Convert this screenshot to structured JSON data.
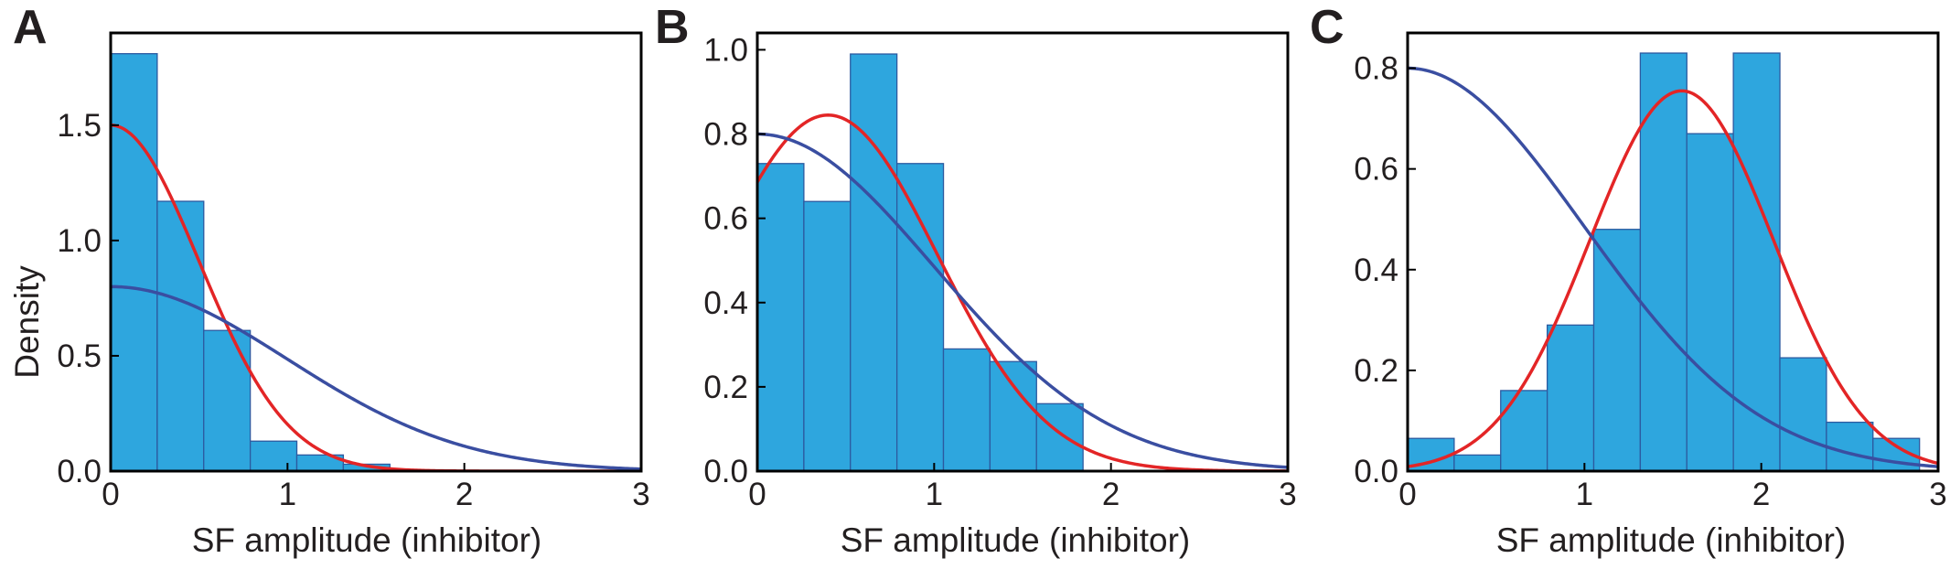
{
  "chart_data": [
    {
      "panel": "A",
      "type": "bar",
      "xlabel": "SF amplitude (inhibitor)",
      "ylabel": "Density",
      "xlim": [
        0,
        3
      ],
      "ylim": [
        0,
        1.9
      ],
      "xticks": [
        0,
        1,
        2,
        3
      ],
      "yticks": [
        0.0,
        0.5,
        1.0,
        1.5
      ],
      "ytick_labels": [
        "0.0",
        "0.5",
        "1.0",
        "1.5"
      ],
      "bin_width": 0.2632,
      "bins": [
        {
          "x0": 0.0,
          "value": 1.81
        },
        {
          "x0": 0.2632,
          "value": 1.17
        },
        {
          "x0": 0.5263,
          "value": 0.61
        },
        {
          "x0": 0.7895,
          "value": 0.13
        },
        {
          "x0": 1.0526,
          "value": 0.07
        },
        {
          "x0": 1.3158,
          "value": 0.03
        }
      ],
      "curves": [
        {
          "color": "#e32526",
          "kind": "half-normal",
          "params": {
            "a": 1.5,
            "mu": 0.0,
            "sigma": 0.5
          }
        },
        {
          "color": "#3a4ea1",
          "kind": "gaussian",
          "params": {
            "a": 0.8,
            "mu": 0.0,
            "sigma": 1.0
          }
        }
      ],
      "grid": false
    },
    {
      "panel": "B",
      "type": "bar",
      "xlabel": "SF amplitude (inhibitor)",
      "ylabel": "",
      "xlim": [
        0,
        3
      ],
      "ylim": [
        0,
        1.04
      ],
      "xticks": [
        0,
        1,
        2,
        3
      ],
      "yticks": [
        0.0,
        0.2,
        0.4,
        0.6,
        0.8,
        1.0
      ],
      "ytick_labels": [
        "0.0",
        "0.2",
        "0.4",
        "0.6",
        "0.8",
        "1.0"
      ],
      "bin_width": 0.2632,
      "bins": [
        {
          "x0": 0.0,
          "value": 0.73
        },
        {
          "x0": 0.2632,
          "value": 0.64
        },
        {
          "x0": 0.5263,
          "value": 0.99
        },
        {
          "x0": 0.7895,
          "value": 0.73
        },
        {
          "x0": 1.0526,
          "value": 0.29
        },
        {
          "x0": 1.3158,
          "value": 0.26
        },
        {
          "x0": 1.5789,
          "value": 0.16
        }
      ],
      "curves": [
        {
          "color": "#e32526",
          "kind": "gaussian",
          "params": {
            "a": 0.845,
            "mu": 0.4,
            "sigma": 0.62
          }
        },
        {
          "color": "#3a4ea1",
          "kind": "gaussian",
          "params": {
            "a": 0.8,
            "mu": 0.0,
            "sigma": 1.0
          }
        }
      ],
      "grid": false
    },
    {
      "panel": "C",
      "type": "bar",
      "xlabel": "SF amplitude (inhibitor)",
      "ylabel": "",
      "xlim": [
        0,
        3
      ],
      "ylim": [
        0,
        0.87
      ],
      "xticks": [
        0,
        1,
        2,
        3
      ],
      "yticks": [
        0.0,
        0.2,
        0.4,
        0.6,
        0.8
      ],
      "ytick_labels": [
        "0.0",
        "0.2",
        "0.4",
        "0.6",
        "0.8"
      ],
      "bin_width": 0.2632,
      "bins": [
        {
          "x0": 0.0,
          "value": 0.065
        },
        {
          "x0": 0.2632,
          "value": 0.032
        },
        {
          "x0": 0.5263,
          "value": 0.16
        },
        {
          "x0": 0.7895,
          "value": 0.29
        },
        {
          "x0": 1.0526,
          "value": 0.48
        },
        {
          "x0": 1.3158,
          "value": 0.83
        },
        {
          "x0": 1.5789,
          "value": 0.67
        },
        {
          "x0": 1.8421,
          "value": 0.83
        },
        {
          "x0": 2.1053,
          "value": 0.225
        },
        {
          "x0": 2.3684,
          "value": 0.097
        },
        {
          "x0": 2.6316,
          "value": 0.065
        }
      ],
      "curves": [
        {
          "color": "#e32526",
          "kind": "gaussian",
          "params": {
            "a": 0.755,
            "mu": 1.55,
            "sigma": 0.52
          }
        },
        {
          "color": "#3a4ea1",
          "kind": "gaussian",
          "params": {
            "a": 0.8,
            "mu": 0.0,
            "sigma": 1.0
          }
        }
      ],
      "grid": false
    }
  ],
  "style": {
    "bar_fill": "#2ea6de",
    "bar_edge": "#2c5aa0",
    "axis_color": "#000000",
    "text_color": "#231f20"
  }
}
